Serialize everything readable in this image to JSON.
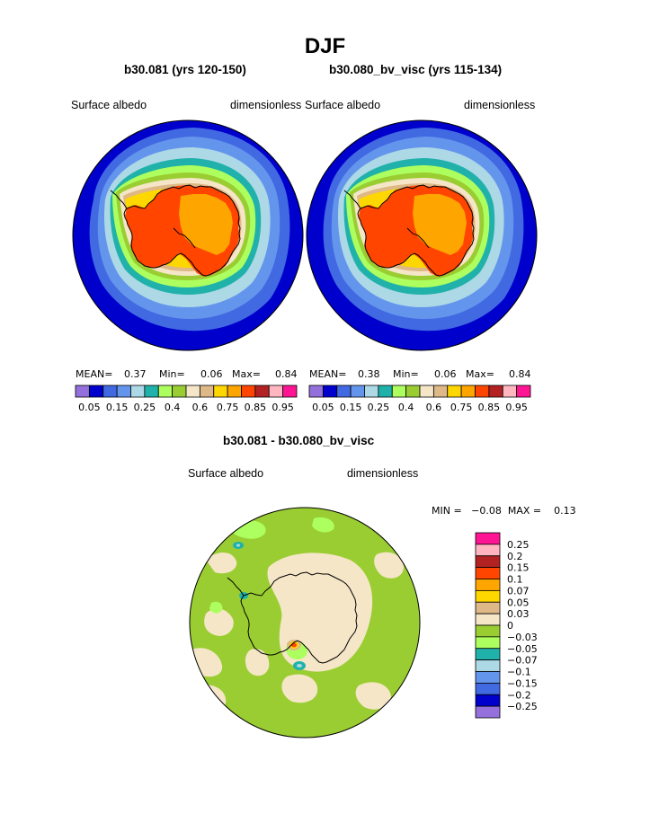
{
  "title": "DJF",
  "panels": [
    {
      "case": "b30.081 (yrs 120-150)",
      "variable": "Surface albedo",
      "units": "dimensionless",
      "stats": {
        "mean_label": "MEAN=",
        "mean": "0.37",
        "min_label": "Min=",
        "min": "0.06",
        "max_label": "Max=",
        "max": "0.84"
      }
    },
    {
      "case": "b30.080_bv_visc (yrs 115-134)",
      "variable": "Surface albedo",
      "units": "dimensionless",
      "stats": {
        "mean_label": "MEAN=",
        "mean": "0.38",
        "min_label": "Min=",
        "min": "0.06",
        "max_label": "Max=",
        "max": "0.84"
      }
    }
  ],
  "colorbar": {
    "colors": [
      "#9370db",
      "#0000cd",
      "#4169e1",
      "#6495ed",
      "#add8e6",
      "#20b2aa",
      "#adff5f",
      "#9acd32",
      "#f5e6c8",
      "#deb887",
      "#ffd700",
      "#ffa500",
      "#ff4500",
      "#b22222",
      "#ffb6c1",
      "#ff1493"
    ],
    "tick_labels": [
      "0.05",
      "0.15",
      "0.25",
      "0.4",
      "0.6",
      "0.75",
      "0.85",
      "0.95"
    ],
    "tick_boundaries": [
      1,
      3,
      5,
      7,
      9,
      11,
      13,
      15
    ]
  },
  "difference": {
    "title": "b30.081 - b30.080_bv_visc",
    "variable": "Surface albedo",
    "units": "dimensionless",
    "stats": "MIN =   −0.08  MAX =    0.13",
    "colors_top_to_bottom": [
      "#ff1493",
      "#ffb6c1",
      "#b22222",
      "#ff4500",
      "#ffa500",
      "#ffd700",
      "#deb887",
      "#f5e6c8",
      "#9acd32",
      "#adff5f",
      "#20b2aa",
      "#add8e6",
      "#6495ed",
      "#4169e1",
      "#0000cd",
      "#9370db"
    ],
    "tick_labels_top_to_bottom": [
      "0.25",
      "0.2",
      "0.15",
      "0.1",
      "0.07",
      "0.05",
      "0.03",
      "0",
      "−0.03",
      "−0.05",
      "−0.07",
      "−0.1",
      "−0.15",
      "−0.2",
      "−0.25"
    ]
  },
  "legend_colors": {
    "ocean_low": "#0000cd",
    "ice_high": "#ffa500",
    "ice_edge": "#ff4500",
    "coast": "#000000",
    "diff_neutral": "#9acd32",
    "diff_zero": "#f5e6c8"
  }
}
